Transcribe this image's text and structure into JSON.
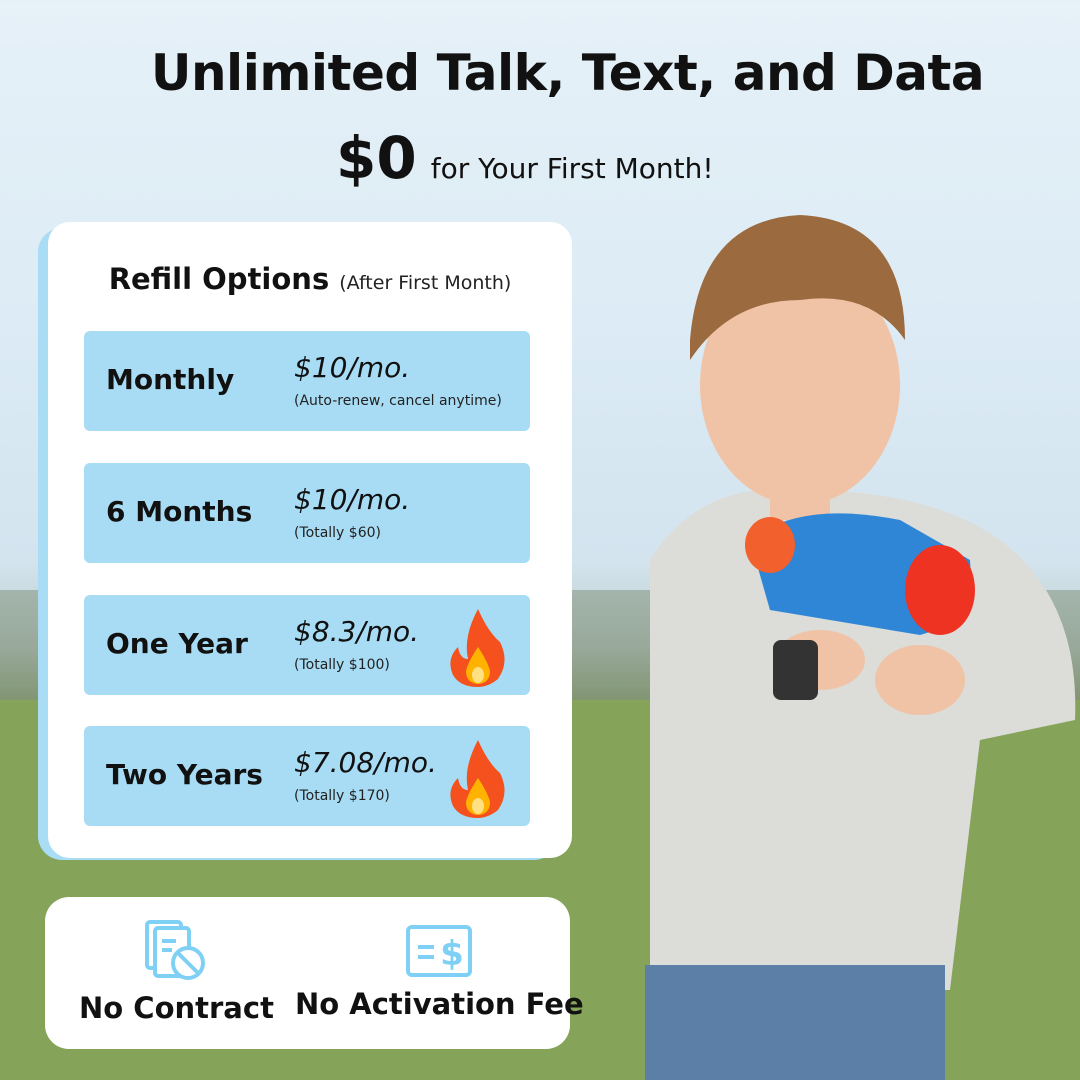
{
  "headline": "Unlimited Talk, Text, and Data",
  "promo": {
    "price": "$0",
    "text": "for Your First Month!"
  },
  "refill": {
    "title": "Refill Options",
    "subtitle": "(After First Month)",
    "options": [
      {
        "name": "Monthly",
        "price": "$10/mo.",
        "note": "(Auto-renew, cancel anytime)",
        "hot": false
      },
      {
        "name": "6 Months",
        "price": "$10/mo.",
        "note": "(Totally $60)",
        "hot": false
      },
      {
        "name": "One Year",
        "price": "$8.3/mo.",
        "note": "(Totally $100)",
        "hot": true
      },
      {
        "name": "Two Years",
        "price": "$7.08/mo.",
        "note": "(Totally $170)",
        "hot": true
      }
    ]
  },
  "features": [
    {
      "label": "No Contract",
      "icon": "no-contract-icon"
    },
    {
      "label": "No Activation Fee",
      "icon": "no-fee-icon"
    }
  ],
  "colors": {
    "accent": "#a8dcf4",
    "icon": "#7fd0f5"
  }
}
